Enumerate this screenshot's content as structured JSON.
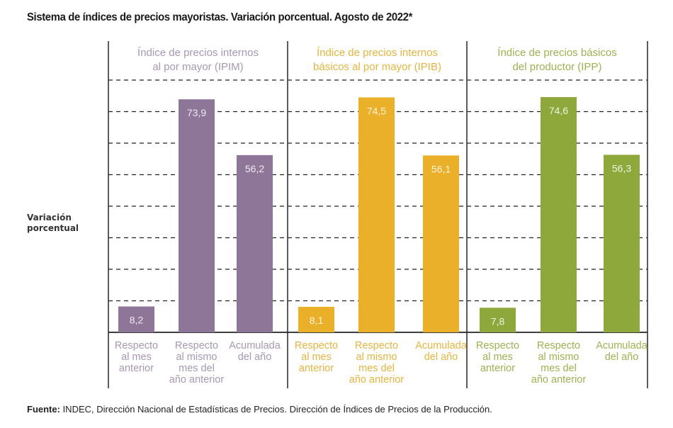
{
  "title": "Sistema de índices de precios mayoristas. Variación porcentual. Agosto de 2022*",
  "y_axis_label": [
    "Variación",
    "porcentual"
  ],
  "source": {
    "label": "Fuente:",
    "text": " INDEC, Dirección Nacional de Estadísticas de Precios. Dirección de Índices de Precios de la Producción."
  },
  "chart_data": {
    "type": "bar",
    "title": "Sistema de índices de precios mayoristas. Variación porcentual. Agosto de 2022*",
    "ylabel": "Variación porcentual",
    "xlabel": "",
    "ylim": [
      0,
      80
    ],
    "grid": true,
    "gridline_step": 10,
    "categories": [
      [
        "Respecto",
        "al mes",
        "anterior"
      ],
      [
        "Respecto",
        "al mismo",
        "mes del",
        "año anterior"
      ],
      [
        "Acumulada",
        "del año"
      ]
    ],
    "panels": [
      {
        "name": "Índice de precios internos al por mayor (IPIM)",
        "header_lines": [
          "Índice de precios internos",
          "al por mayor (IPIM)"
        ],
        "color": "#8e7699",
        "label_color": "#a897b3",
        "values": [
          8.2,
          73.9,
          56.2
        ],
        "value_labels": [
          "8,2",
          "73,9",
          "56,2"
        ]
      },
      {
        "name": "Índice de precios internos básicos al por mayor (IPIB)",
        "header_lines": [
          "Índice de precios internos",
          "básicos al por mayor (IPIB)"
        ],
        "color": "#ebb02a",
        "label_color": "#e6b440",
        "values": [
          8.1,
          74.5,
          56.1
        ],
        "value_labels": [
          "8,1",
          "74,5",
          "56,1"
        ]
      },
      {
        "name": "Índice de precios básicos del productor (IPP)",
        "header_lines": [
          "Índice de precios básicos",
          "del productor (IPP)"
        ],
        "color": "#8fa83c",
        "label_color": "#9cb252",
        "values": [
          7.8,
          74.6,
          56.3
        ],
        "value_labels": [
          "7,8",
          "74,6",
          "56,3"
        ]
      }
    ]
  }
}
